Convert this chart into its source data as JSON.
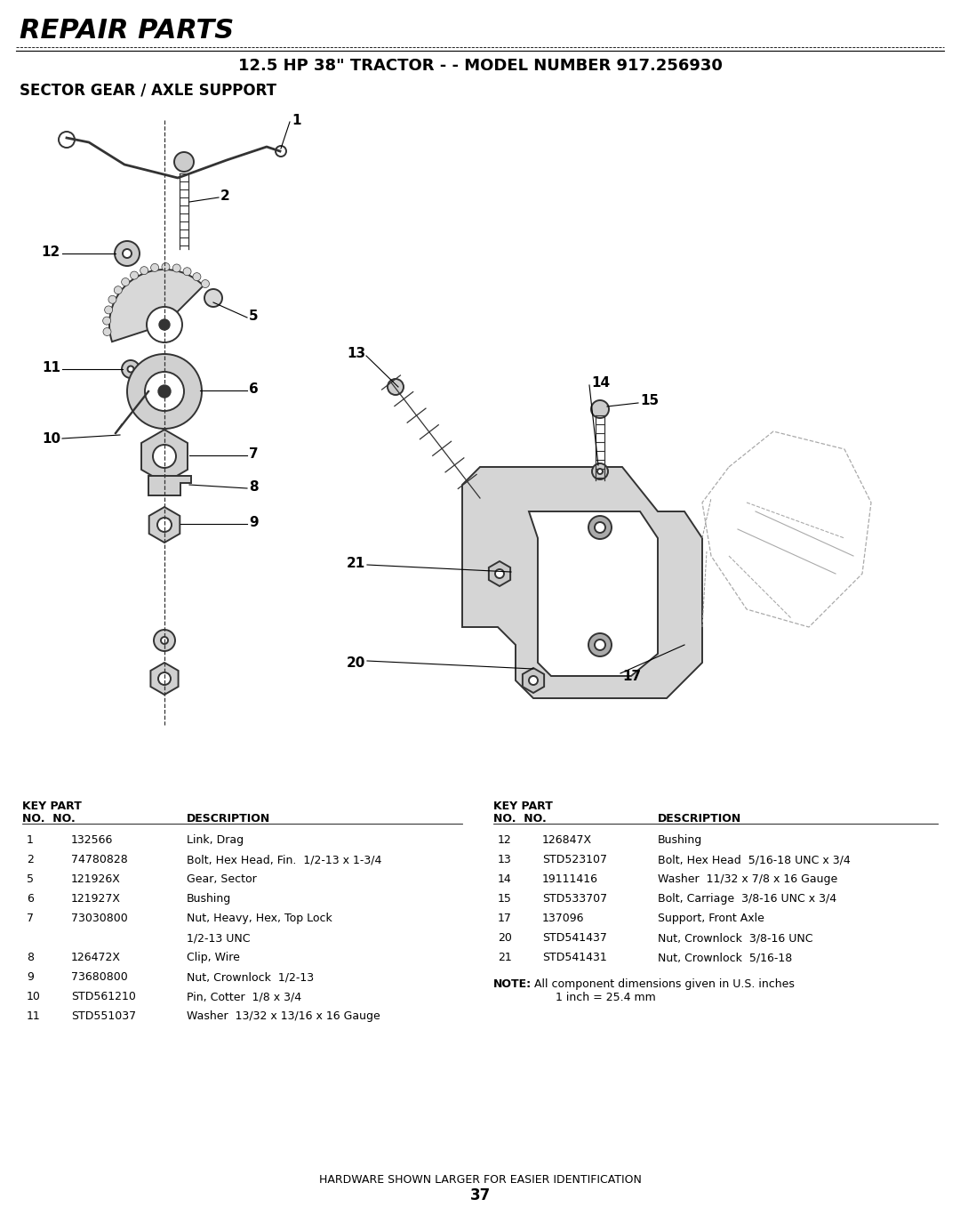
{
  "title_repair": "REPAIR PARTS",
  "title_model": "12.5 HP 38\" TRACTOR - - MODEL NUMBER 917.256930",
  "title_section": "SECTOR GEAR / AXLE SUPPORT",
  "bg_color": "#ffffff",
  "left_parts": [
    {
      "key": "1",
      "part": "132566",
      "desc": "Link, Drag"
    },
    {
      "key": "2",
      "part": "74780828",
      "desc": "Bolt, Hex Head, Fin.  1/2-13 x 1-3/4"
    },
    {
      "key": "5",
      "part": "121926X",
      "desc": "Gear, Sector"
    },
    {
      "key": "6",
      "part": "121927X",
      "desc": "Bushing"
    },
    {
      "key": "7",
      "part": "73030800",
      "desc": "Nut, Heavy, Hex, Top Lock"
    },
    {
      "key": "",
      "part": "",
      "desc": "1/2-13 UNC"
    },
    {
      "key": "8",
      "part": "126472X",
      "desc": "Clip, Wire"
    },
    {
      "key": "9",
      "part": "73680800",
      "desc": "Nut, Crownlock  1/2-13"
    },
    {
      "key": "10",
      "part": "STD561210",
      "desc": "Pin, Cotter  1/8 x 3/4"
    },
    {
      "key": "11",
      "part": "STD551037",
      "desc": "Washer  13/32 x 13/16 x 16 Gauge"
    }
  ],
  "right_parts": [
    {
      "key": "12",
      "part": "126847X",
      "desc": "Bushing"
    },
    {
      "key": "13",
      "part": "STD523107",
      "desc": "Bolt, Hex Head  5/16-18 UNC x 3/4"
    },
    {
      "key": "14",
      "part": "19111416",
      "desc": "Washer  11/32 x 7/8 x 16 Gauge"
    },
    {
      "key": "15",
      "part": "STD533707",
      "desc": "Bolt, Carriage  3/8-16 UNC x 3/4"
    },
    {
      "key": "17",
      "part": "137096",
      "desc": "Support, Front Axle"
    },
    {
      "key": "20",
      "part": "STD541437",
      "desc": "Nut, Crownlock  3/8-16 UNC"
    },
    {
      "key": "21",
      "part": "STD541431",
      "desc": "Nut, Crownlock  5/16-18"
    }
  ],
  "note_bold": "NOTE:",
  "note_normal": "  All component dimensions given in U.S. inches\n        1 inch = 25.4 mm",
  "footer": "HARDWARE SHOWN LARGER FOR EASIER IDENTIFICATION",
  "page": "37"
}
